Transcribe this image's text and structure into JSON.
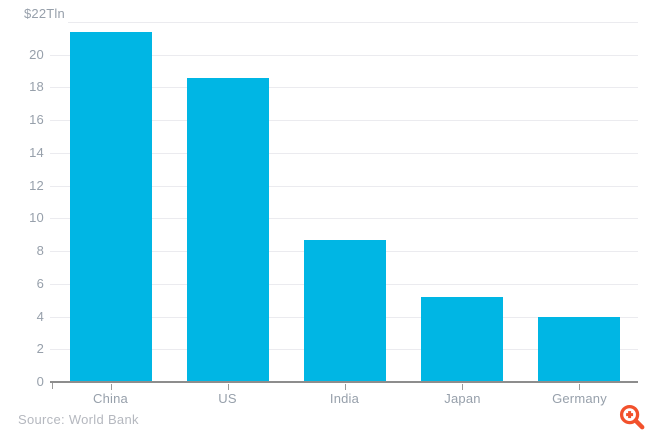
{
  "chart_data": {
    "type": "bar",
    "title": "",
    "xlabel": "",
    "ylabel": "",
    "categories": [
      "China",
      "US",
      "India",
      "Japan",
      "Germany"
    ],
    "values": [
      21.4,
      18.6,
      8.7,
      5.2,
      4.0
    ],
    "ylim": [
      0,
      22
    ],
    "yticks": [
      0,
      2,
      4,
      6,
      8,
      10,
      12,
      14,
      16,
      18,
      20
    ],
    "top_axis_label": "$22Tln",
    "grid": true,
    "legend": false,
    "bar_color": "#00b6e4"
  },
  "source": {
    "label": "Source: World Bank"
  },
  "zoom_button": {
    "color": "#f2512c"
  },
  "colors": {
    "background": "#ffffff",
    "gridline": "#ebebef",
    "axis_line": "#8d8d8d",
    "tick_mark": "#9b9b9b",
    "tick_label": "#97a0ab",
    "source_text": "#b5b8bf"
  }
}
